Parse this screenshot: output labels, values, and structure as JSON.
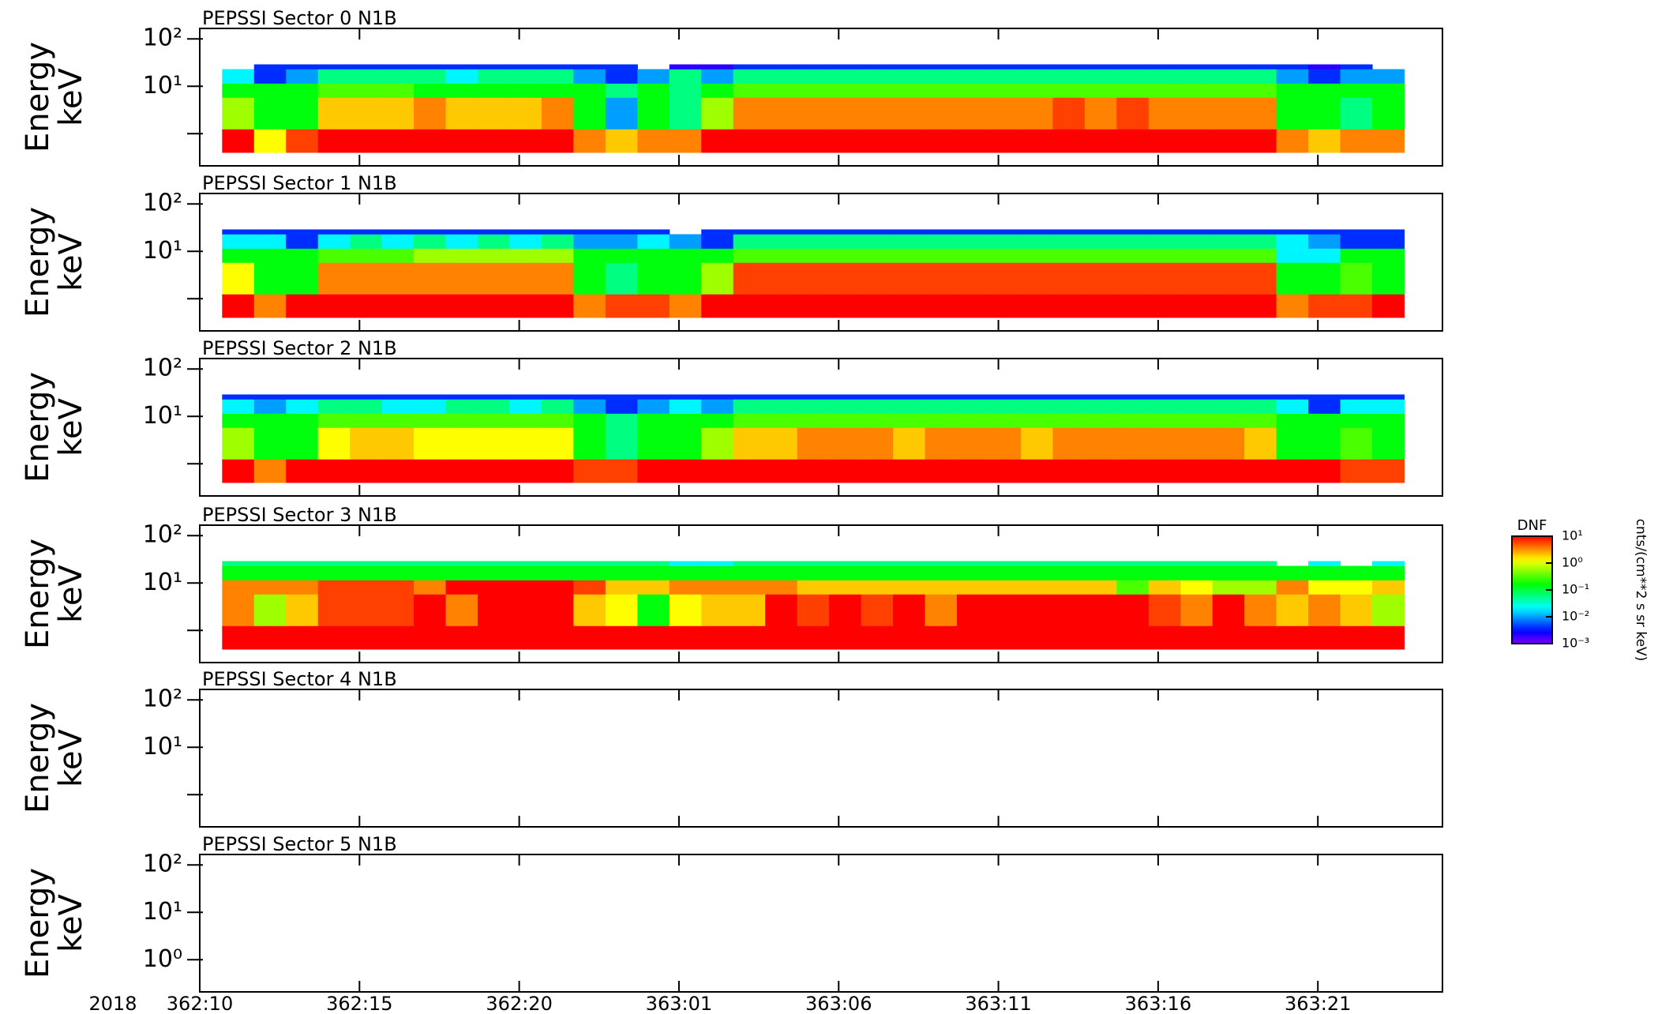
{
  "chart_data": [
    {
      "type": "heatmap",
      "title": "PEPSSI Sector 0 N1B",
      "ylabel": [
        "Energy",
        "keV"
      ],
      "log_y": true,
      "colormap": "rainbow",
      "xlim": [
        10,
        48.9
      ],
      "xticks": [
        10,
        15,
        20,
        25,
        30,
        35,
        40,
        45
      ],
      "ylim": [
        0.21,
        166
      ],
      "yticks": [
        {
          "value": 100,
          "label": "10²"
        },
        {
          "value": 10,
          "label": "10¹"
        },
        1
      ],
      "x": [
        11.2,
        12.2,
        13.2,
        14.2,
        15.2,
        16.2,
        17.2,
        18.2,
        19.2,
        20.2,
        21.2,
        22.2,
        23.2,
        24.2,
        25.2,
        26.2,
        27.2,
        28.2,
        29.2,
        30.2,
        31.2,
        32.2,
        33.2,
        34.2,
        35.2,
        36.2,
        37.2,
        38.2,
        39.2,
        40.2,
        41.2,
        42.2,
        43.2,
        44.2,
        45.2,
        46.2,
        47.2
      ],
      "y_edges": [
        0.4,
        1.25,
        5.8,
        11.5,
        23,
        29
      ],
      "values": [
        [
          10,
          1.3,
          6,
          10,
          10,
          10,
          10,
          10,
          10,
          10,
          10,
          3.5,
          2,
          3.5,
          3.5,
          10,
          10,
          10,
          10,
          10,
          10,
          10,
          10,
          10,
          10,
          10,
          10,
          10,
          10,
          10,
          10,
          10,
          10,
          3.5,
          2,
          3.5,
          3.5
        ],
        [
          0.6,
          0.15,
          0.15,
          2,
          2,
          2,
          3.5,
          2,
          2,
          2,
          3.5,
          0.15,
          0.01,
          0.15,
          0.06,
          0.6,
          3.5,
          3.5,
          3.5,
          3.5,
          3.5,
          3.5,
          3.5,
          3.5,
          3.5,
          3.5,
          6,
          3.5,
          6,
          3.5,
          3.5,
          3.5,
          3.5,
          0.15,
          0.15,
          0.06,
          0.15
        ],
        [
          0.15,
          0.15,
          0.15,
          0.3,
          0.3,
          0.3,
          0.15,
          0.15,
          0.15,
          0.15,
          0.15,
          0.15,
          0.06,
          0.15,
          0.06,
          0.15,
          0.3,
          0.3,
          0.3,
          0.3,
          0.3,
          0.3,
          0.3,
          0.3,
          0.3,
          0.3,
          0.3,
          0.3,
          0.3,
          0.3,
          0.3,
          0.3,
          0.3,
          0.15,
          0.15,
          0.15,
          0.15
        ],
        [
          0.02,
          0.004,
          0.01,
          0.06,
          0.06,
          0.06,
          0.06,
          0.02,
          0.06,
          0.06,
          0.06,
          0.01,
          0.004,
          0.01,
          0.06,
          0.01,
          0.06,
          0.06,
          0.06,
          0.06,
          0.06,
          0.06,
          0.06,
          0.06,
          0.06,
          0.06,
          0.06,
          0.06,
          0.06,
          0.06,
          0.06,
          0.06,
          0.06,
          0.01,
          0.004,
          0.01,
          0.01
        ],
        [
          null,
          0.004,
          0.004,
          0.004,
          0.004,
          0.004,
          0.004,
          0.004,
          0.004,
          0.004,
          0.004,
          0.004,
          0.004,
          null,
          0.002,
          0.002,
          0.004,
          0.004,
          0.004,
          0.004,
          0.004,
          0.004,
          0.004,
          0.004,
          0.004,
          0.004,
          0.004,
          0.004,
          0.004,
          0.004,
          0.004,
          0.004,
          0.004,
          0.004,
          0.002,
          0.004,
          null
        ]
      ]
    },
    {
      "type": "heatmap",
      "title": "PEPSSI Sector 1 N1B",
      "ylabel": [
        "Energy",
        "keV"
      ],
      "log_y": true,
      "colormap": "rainbow",
      "xlim": [
        10,
        48.9
      ],
      "xticks": [
        10,
        15,
        20,
        25,
        30,
        35,
        40,
        45
      ],
      "ylim": [
        0.21,
        166
      ],
      "yticks": [
        {
          "value": 100,
          "label": "10²"
        },
        {
          "value": 10,
          "label": "10¹"
        },
        1
      ],
      "x": [
        11.2,
        12.2,
        13.2,
        14.2,
        15.2,
        16.2,
        17.2,
        18.2,
        19.2,
        20.2,
        21.2,
        22.2,
        23.2,
        24.2,
        25.2,
        26.2,
        27.2,
        28.2,
        29.2,
        30.2,
        31.2,
        32.2,
        33.2,
        34.2,
        35.2,
        36.2,
        37.2,
        38.2,
        39.2,
        40.2,
        41.2,
        42.2,
        43.2,
        44.2,
        45.2,
        46.2,
        47.2
      ],
      "y_edges": [
        0.4,
        1.25,
        5.8,
        11.5,
        23,
        29
      ],
      "values": [
        [
          10,
          3.5,
          10,
          10,
          10,
          10,
          10,
          10,
          10,
          10,
          10,
          3.5,
          6,
          6,
          3.5,
          10,
          10,
          10,
          10,
          10,
          10,
          10,
          10,
          10,
          10,
          10,
          10,
          10,
          10,
          10,
          10,
          10,
          10,
          3.5,
          6,
          6,
          10
        ],
        [
          1.3,
          0.15,
          0.15,
          3.5,
          3.5,
          3.5,
          3.5,
          3.5,
          3.5,
          3.5,
          3.5,
          0.15,
          0.06,
          0.15,
          0.15,
          0.6,
          6,
          6,
          6,
          6,
          6,
          6,
          6,
          6,
          6,
          6,
          6,
          6,
          6,
          6,
          6,
          6,
          6,
          0.15,
          0.15,
          0.3,
          0.15
        ],
        [
          0.15,
          0.15,
          0.15,
          0.3,
          0.3,
          0.3,
          0.6,
          0.6,
          0.6,
          0.6,
          0.6,
          0.15,
          0.15,
          0.15,
          0.15,
          0.15,
          0.3,
          0.3,
          0.3,
          0.3,
          0.3,
          0.3,
          0.3,
          0.3,
          0.3,
          0.3,
          0.3,
          0.3,
          0.3,
          0.3,
          0.3,
          0.3,
          0.3,
          0.02,
          0.02,
          0.15,
          0.15
        ],
        [
          0.02,
          0.02,
          0.004,
          0.02,
          0.06,
          0.02,
          0.06,
          0.02,
          0.06,
          0.02,
          0.06,
          0.01,
          0.01,
          0.02,
          0.01,
          0.004,
          0.06,
          0.06,
          0.06,
          0.06,
          0.06,
          0.06,
          0.06,
          0.06,
          0.06,
          0.06,
          0.06,
          0.06,
          0.06,
          0.06,
          0.06,
          0.06,
          0.06,
          0.02,
          0.01,
          0.004,
          0.004
        ],
        [
          0.004,
          0.004,
          0.004,
          0.004,
          0.004,
          0.004,
          0.004,
          0.004,
          0.004,
          0.004,
          0.004,
          0.004,
          0.004,
          0.004,
          null,
          0.004,
          0.004,
          0.004,
          0.004,
          0.004,
          0.004,
          0.004,
          0.004,
          0.004,
          0.004,
          0.004,
          0.004,
          0.004,
          0.004,
          0.004,
          0.004,
          0.004,
          0.004,
          0.004,
          0.004,
          0.004,
          0.004
        ]
      ]
    },
    {
      "type": "heatmap",
      "title": "PEPSSI Sector 2 N1B",
      "ylabel": [
        "Energy",
        "keV"
      ],
      "log_y": true,
      "colormap": "rainbow",
      "xlim": [
        10,
        48.9
      ],
      "xticks": [
        10,
        15,
        20,
        25,
        30,
        35,
        40,
        45
      ],
      "ylim": [
        0.21,
        166
      ],
      "yticks": [
        {
          "value": 100,
          "label": "10²"
        },
        {
          "value": 10,
          "label": "10¹"
        },
        1
      ],
      "x": [
        11.2,
        12.2,
        13.2,
        14.2,
        15.2,
        16.2,
        17.2,
        18.2,
        19.2,
        20.2,
        21.2,
        22.2,
        23.2,
        24.2,
        25.2,
        26.2,
        27.2,
        28.2,
        29.2,
        30.2,
        31.2,
        32.2,
        33.2,
        34.2,
        35.2,
        36.2,
        37.2,
        38.2,
        39.2,
        40.2,
        41.2,
        42.2,
        43.2,
        44.2,
        45.2,
        46.2,
        47.2
      ],
      "y_edges": [
        0.4,
        1.25,
        5.8,
        11.5,
        23,
        29
      ],
      "values": [
        [
          10,
          3.5,
          10,
          10,
          10,
          10,
          10,
          10,
          10,
          10,
          10,
          6,
          6,
          10,
          10,
          10,
          10,
          10,
          10,
          10,
          10,
          10,
          10,
          10,
          10,
          10,
          10,
          10,
          10,
          10,
          10,
          10,
          10,
          10,
          10,
          6,
          6
        ],
        [
          0.6,
          0.15,
          0.15,
          1.3,
          2,
          2,
          1.3,
          1.3,
          1.3,
          1.3,
          1.3,
          0.15,
          0.06,
          0.15,
          0.15,
          0.6,
          2,
          2,
          3.5,
          3.5,
          3.5,
          2,
          3.5,
          3.5,
          3.5,
          2,
          3.5,
          3.5,
          3.5,
          3.5,
          3.5,
          3.5,
          2,
          0.15,
          0.15,
          0.3,
          0.15
        ],
        [
          0.15,
          0.15,
          0.15,
          0.3,
          0.3,
          0.3,
          0.3,
          0.3,
          0.3,
          0.3,
          0.3,
          0.15,
          0.06,
          0.15,
          0.15,
          0.15,
          0.3,
          0.3,
          0.3,
          0.3,
          0.3,
          0.3,
          0.3,
          0.3,
          0.3,
          0.3,
          0.3,
          0.3,
          0.3,
          0.3,
          0.3,
          0.3,
          0.3,
          0.15,
          0.15,
          0.15,
          0.15
        ],
        [
          0.02,
          0.01,
          0.02,
          0.06,
          0.06,
          0.02,
          0.02,
          0.06,
          0.06,
          0.02,
          0.06,
          0.01,
          0.004,
          0.01,
          0.02,
          0.01,
          0.06,
          0.06,
          0.06,
          0.06,
          0.06,
          0.06,
          0.06,
          0.06,
          0.06,
          0.06,
          0.06,
          0.06,
          0.06,
          0.06,
          0.06,
          0.06,
          0.06,
          0.02,
          0.004,
          0.02,
          0.02
        ],
        [
          0.004,
          0.004,
          0.004,
          0.004,
          0.004,
          0.004,
          0.004,
          0.004,
          0.004,
          0.004,
          0.004,
          0.004,
          0.004,
          0.004,
          0.004,
          0.004,
          0.004,
          0.004,
          0.004,
          0.004,
          0.004,
          0.004,
          0.004,
          0.004,
          0.004,
          0.004,
          0.004,
          0.004,
          0.004,
          0.004,
          0.004,
          0.004,
          0.004,
          0.004,
          0.004,
          0.004,
          0.004
        ]
      ]
    },
    {
      "type": "heatmap",
      "title": "PEPSSI Sector 3 N1B",
      "ylabel": [
        "Energy",
        "keV"
      ],
      "log_y": true,
      "colormap": "rainbow",
      "xlim": [
        10,
        48.9
      ],
      "xticks": [
        10,
        15,
        20,
        25,
        30,
        35,
        40,
        45
      ],
      "ylim": [
        0.21,
        166
      ],
      "yticks": [
        {
          "value": 100,
          "label": "10²"
        },
        {
          "value": 10,
          "label": "10¹"
        },
        1
      ],
      "x": [
        11.2,
        12.2,
        13.2,
        14.2,
        15.2,
        16.2,
        17.2,
        18.2,
        19.2,
        20.2,
        21.2,
        22.2,
        23.2,
        24.2,
        25.2,
        26.2,
        27.2,
        28.2,
        29.2,
        30.2,
        31.2,
        32.2,
        33.2,
        34.2,
        35.2,
        36.2,
        37.2,
        38.2,
        39.2,
        40.2,
        41.2,
        42.2,
        43.2,
        44.2,
        45.2,
        46.2,
        47.2
      ],
      "y_edges": [
        0.4,
        1.25,
        5.8,
        11.5,
        23,
        29
      ],
      "values": [
        [
          10,
          10,
          10,
          10,
          10,
          10,
          10,
          10,
          10,
          10,
          10,
          10,
          10,
          10,
          10,
          10,
          10,
          10,
          10,
          10,
          10,
          10,
          10,
          10,
          10,
          10,
          10,
          10,
          10,
          10,
          10,
          10,
          10,
          10,
          10,
          10,
          10
        ],
        [
          3.5,
          0.6,
          2,
          6,
          6,
          6,
          10,
          3.5,
          10,
          10,
          10,
          2,
          1.3,
          0.15,
          1.3,
          2,
          2,
          10,
          6,
          10,
          6,
          10,
          3.5,
          10,
          10,
          10,
          10,
          10,
          10,
          6,
          3.5,
          10,
          3.5,
          2,
          3.5,
          2,
          0.6
        ],
        [
          3.5,
          3.5,
          3.5,
          6,
          6,
          6,
          3.5,
          10,
          10,
          10,
          10,
          6,
          2,
          2,
          3.5,
          3.5,
          3.5,
          3.5,
          2,
          2,
          2,
          2,
          2,
          2,
          2,
          2,
          2,
          2,
          0.3,
          2,
          1.3,
          0.6,
          0.6,
          3.5,
          1.3,
          1.3,
          2
        ],
        [
          0.15,
          0.15,
          0.15,
          0.15,
          0.15,
          0.15,
          0.15,
          0.15,
          0.15,
          0.15,
          0.15,
          0.15,
          0.15,
          0.15,
          0.15,
          0.15,
          0.15,
          0.15,
          0.15,
          0.15,
          0.15,
          0.15,
          0.15,
          0.15,
          0.15,
          0.15,
          0.15,
          0.15,
          0.15,
          0.15,
          0.15,
          0.15,
          0.15,
          0.15,
          0.15,
          0.15,
          0.15
        ],
        [
          0.06,
          0.06,
          0.06,
          0.06,
          0.06,
          0.06,
          0.06,
          0.06,
          0.06,
          0.06,
          0.06,
          0.06,
          0.06,
          0.06,
          0.02,
          0.02,
          0.06,
          0.06,
          0.06,
          0.06,
          0.06,
          0.06,
          0.06,
          0.06,
          0.06,
          0.06,
          0.06,
          0.06,
          0.06,
          0.06,
          0.06,
          0.06,
          0.06,
          null,
          0.02,
          null,
          0.02
        ]
      ]
    },
    {
      "type": "heatmap",
      "title": "PEPSSI Sector 4 N1B",
      "ylabel": [
        "Energy",
        "keV"
      ],
      "log_y": true,
      "colormap": "rainbow",
      "xlim": [
        10,
        48.9
      ],
      "xticks": [
        10,
        15,
        20,
        25,
        30,
        35,
        40,
        45
      ],
      "ylim": [
        0.21,
        166
      ],
      "yticks": [
        {
          "value": 100,
          "label": "10²"
        },
        {
          "value": 10,
          "label": "10¹"
        },
        1
      ]
    },
    {
      "type": "heatmap",
      "title": "PEPSSI Sector 5 N1B",
      "ylabel": [
        "Energy",
        "keV"
      ],
      "log_y": true,
      "colormap": "rainbow",
      "xlabel": "2018",
      "xlim": [
        10,
        48.9
      ],
      "xticks": [
        {
          "value": 10,
          "label": "362:10"
        },
        {
          "value": 15,
          "label": "362:15"
        },
        {
          "value": 20,
          "label": "362:20"
        },
        {
          "value": 25,
          "label": "363:01"
        },
        {
          "value": 30,
          "label": "363:06"
        },
        {
          "value": 35,
          "label": "363:11"
        },
        {
          "value": 40,
          "label": "363:16"
        },
        {
          "value": 45,
          "label": "363:21"
        }
      ],
      "ylim": [
        0.21,
        166
      ],
      "yticks": [
        {
          "value": 100,
          "label": "10²"
        },
        {
          "value": 10,
          "label": "10¹"
        },
        {
          "value": 1,
          "label": "10⁰"
        }
      ]
    }
  ],
  "colorbar": {
    "title": "DNF",
    "unit": "cnts/(cm**2 s sr keV)",
    "log": true,
    "lim": [
      0.001,
      10
    ],
    "ticks": [
      {
        "value": 10,
        "label": "10¹"
      },
      {
        "value": 1,
        "label": "10⁰"
      },
      {
        "value": 0.1,
        "label": "10⁻¹"
      },
      {
        "value": 0.01,
        "label": "10⁻²"
      },
      {
        "value": 0.001,
        "label": "10⁻³"
      }
    ]
  }
}
